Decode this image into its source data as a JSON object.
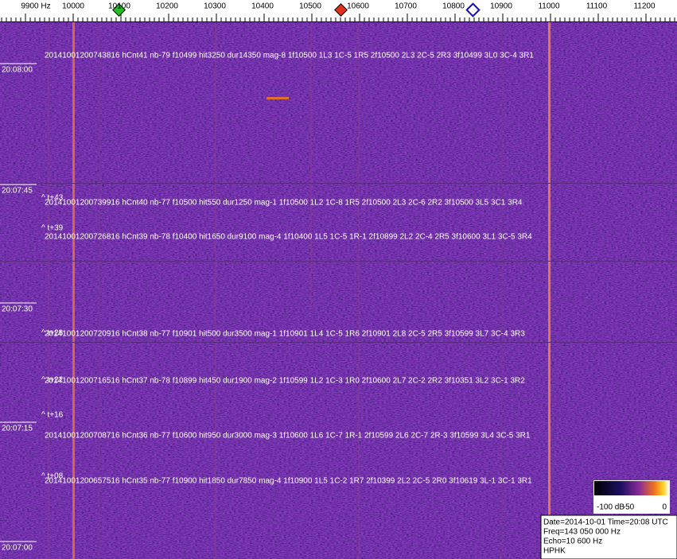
{
  "ruler": {
    "ticks": [
      "9900 Hz",
      "10000",
      "10100",
      "10200",
      "10300",
      "10400",
      "10500",
      "10600",
      "10700",
      "10800",
      "10900",
      "11000",
      "11100",
      "11200"
    ]
  },
  "time_labels": [
    "20:08:00",
    "20:07:45",
    "20:07:30",
    "20:07:15",
    "20:07:00"
  ],
  "markers": [
    "^ t+43",
    "^ t+39",
    "^ t+28",
    "^ t+22",
    "^ t+16",
    "^ t+08"
  ],
  "detections": [
    "20141001200743816 hCnt41 nb-79 f10499 hit3250 dur14350 mag-8 1f10500 1L3 1C-5 1R5 2f10500 2L3 2C-5 2R3 3f10499 3L0 3C-4 3R1",
    "20141001200739916 hCnt40 nb-77 f10500 hit550 dur1250 mag-1 1f10500 1L2 1C-8 1R5 2f10500 2L3 2C-6 2R2 3f10500 3L5 3C1 3R4",
    "20141001200726816 hCnt39 nb-78 f10400 hit1650 dur9100 mag-4 1f10400 1L5 1C-5 1R-1 2f10899 2L2 2C-4 2R5 3f10600 3L1 3C-5 3R4",
    "20141001200720916 hCnt38 nb-77 f10901 hit500 dur3500 mag-1 1f10901 1L4 1C-5 1R6 2f10901 2L8 2C-5 2R5 3f10599 3L7 3C-4 3R3",
    "20141001200716516 hCnt37 nb-78 f10899 hit450 dur1900 mag-2 1f10599 1L2 1C-3 1R0 2f10600 2L7 2C-2 2R2 3f10351 3L2 3C-1 3R2",
    "20141001200708716 hCnt36 nb-77 f10600 hit950 dur3000 mag-3 1f10600 1L6 1C-7 1R-1 2f10599 2L6 2C-7 2R-3 3f10599 3L4 3C-5 3R1",
    "20141001200657516 hCnt35 nb-77 f10900 hit1850 dur7850 mag-4 1f10900 1L5 1C-2 1R7 2f10399 2L2 2C-5 2R0 3f10619 3L-1 3C-1 3R1"
  ],
  "colorbar": {
    "labels": [
      "-100 dB",
      "-50",
      "0"
    ]
  },
  "info": [
    "Date=2014-10-01 Time=20:08 UTC",
    "Freq=143 050 000 Hz",
    "Echo=10 600 Hz",
    "HPHK"
  ]
}
